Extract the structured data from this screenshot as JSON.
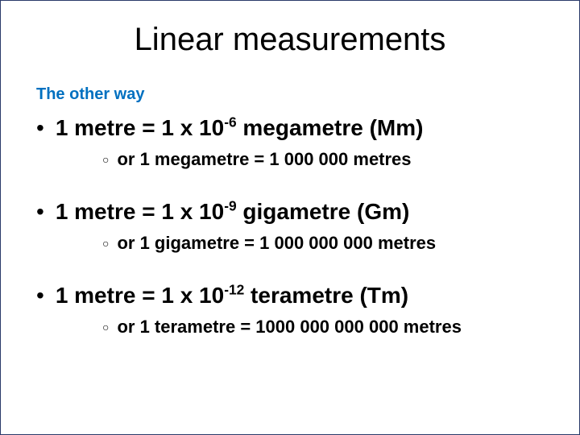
{
  "title": "Linear measurements",
  "subtitle": "The other way",
  "colors": {
    "subtitle": "#0070c0",
    "text": "#000000",
    "background": "#ffffff",
    "border": "#2a3a6a"
  },
  "typography": {
    "title_fontsize": 40,
    "subtitle_fontsize": 20,
    "bullet_fontsize": 28,
    "sub_fontsize": 22,
    "font_family": "Arial"
  },
  "items": [
    {
      "main_pre": "1 metre = 1 x 10",
      "main_sup": "-6",
      "main_post": " megametre (Mm)",
      "sub": "or 1 megametre = 1 000 000 metres"
    },
    {
      "main_pre": "1 metre = 1 x 10",
      "main_sup": "-9",
      "main_post": " gigametre (Gm)",
      "sub": "or 1 gigametre = 1 000 000 000 metres"
    },
    {
      "main_pre": "1 metre = 1 x 10",
      "main_sup": "-12",
      "main_post": " terametre (Tm)",
      "sub": "or 1 terametre = 1000 000 000 000 metres"
    }
  ]
}
